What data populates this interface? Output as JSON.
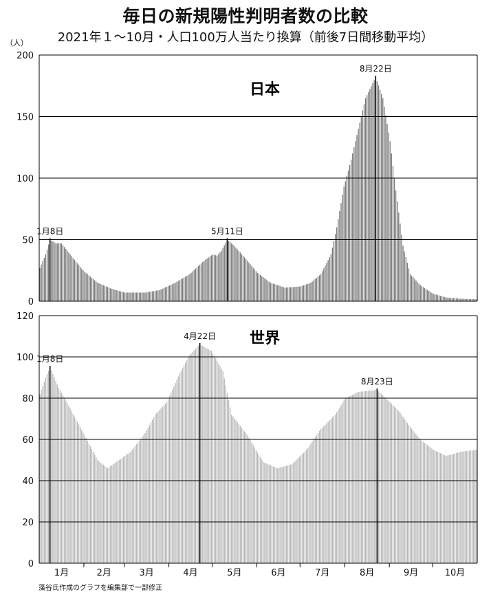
{
  "title": "毎日の新規陽性判明者数の比較",
  "subtitle": "2021年１〜10月・人口100万人当たり換算（前後7日間移動平均）",
  "credit": "藻谷氏作成のグラフを編集部で一部修正",
  "unit_label": "（人）",
  "colors": {
    "japan_bars": "#7a7a7a",
    "world_bars": "#b8b8b8",
    "grid": "#000000"
  },
  "chart_data": [
    {
      "type": "bar",
      "title": "日本",
      "xlabel": "",
      "ylabel": "（人）",
      "ylim": [
        0,
        200
      ],
      "yticks": [
        0,
        50,
        100,
        150,
        200
      ],
      "grid": true,
      "series": [
        {
          "keypoints": [
            [
              "01-01",
              27
            ],
            [
              "01-05",
              38
            ],
            [
              "01-08",
              50
            ],
            [
              "01-12",
              47
            ],
            [
              "01-16",
              47
            ],
            [
              "01-22",
              38
            ],
            [
              "01-31",
              25
            ],
            [
              "02-10",
              15
            ],
            [
              "02-20",
              10
            ],
            [
              "03-01",
              7
            ],
            [
              "03-15",
              7
            ],
            [
              "03-25",
              9
            ],
            [
              "04-05",
              15
            ],
            [
              "04-15",
              22
            ],
            [
              "04-25",
              33
            ],
            [
              "05-01",
              38
            ],
            [
              "05-04",
              37
            ],
            [
              "05-07",
              41
            ],
            [
              "05-11",
              50
            ],
            [
              "05-15",
              46
            ],
            [
              "05-22",
              37
            ],
            [
              "06-01",
              23
            ],
            [
              "06-10",
              15
            ],
            [
              "06-20",
              11
            ],
            [
              "07-01",
              12
            ],
            [
              "07-08",
              15
            ],
            [
              "07-15",
              22
            ],
            [
              "07-22",
              38
            ],
            [
              "07-26",
              60
            ],
            [
              "07-31",
              93
            ],
            [
              "08-05",
              115
            ],
            [
              "08-10",
              140
            ],
            [
              "08-15",
              165
            ],
            [
              "08-22",
              182
            ],
            [
              "08-27",
              165
            ],
            [
              "09-01",
              130
            ],
            [
              "09-05",
              90
            ],
            [
              "09-10",
              45
            ],
            [
              "09-15",
              22
            ],
            [
              "09-22",
              13
            ],
            [
              "10-01",
              6
            ],
            [
              "10-10",
              3
            ],
            [
              "10-20",
              2
            ],
            [
              "10-31",
              1.5
            ]
          ]
        }
      ],
      "annotations": [
        {
          "date": "01-08",
          "label": "1月8日",
          "value": 50
        },
        {
          "date": "05-11",
          "label": "5月11日",
          "value": 50
        },
        {
          "date": "08-22",
          "label": "8月22日",
          "value": 182
        }
      ]
    },
    {
      "type": "bar",
      "title": "世界",
      "xlabel": "",
      "ylabel": "",
      "ylim": [
        0,
        120
      ],
      "yticks": [
        0,
        20,
        40,
        60,
        80,
        100,
        120
      ],
      "grid": true,
      "categories": [
        "1月",
        "2月",
        "3月",
        "4月",
        "5月",
        "6月",
        "7月",
        "8月",
        "9月",
        "10月"
      ],
      "series": [
        {
          "keypoints": [
            [
              "01-01",
              82
            ],
            [
              "01-05",
              90
            ],
            [
              "01-08",
              95
            ],
            [
              "01-14",
              85
            ],
            [
              "01-22",
              75
            ],
            [
              "02-01",
              62
            ],
            [
              "02-10",
              50
            ],
            [
              "02-17",
              46
            ],
            [
              "02-21",
              48
            ],
            [
              "02-25",
              50
            ],
            [
              "03-05",
              54
            ],
            [
              "03-15",
              63
            ],
            [
              "03-22",
              72
            ],
            [
              "03-30",
              78
            ],
            [
              "04-08",
              92
            ],
            [
              "04-15",
              101
            ],
            [
              "04-22",
              106
            ],
            [
              "04-30",
              103
            ],
            [
              "05-08",
              93
            ],
            [
              "05-14",
              72
            ],
            [
              "05-25",
              62
            ],
            [
              "06-05",
              49
            ],
            [
              "06-15",
              46
            ],
            [
              "06-25",
              48
            ],
            [
              "07-05",
              55
            ],
            [
              "07-15",
              65
            ],
            [
              "07-25",
              72
            ],
            [
              "08-01",
              80
            ],
            [
              "08-10",
              83
            ],
            [
              "08-23",
              84
            ],
            [
              "09-01",
              78
            ],
            [
              "09-08",
              73
            ],
            [
              "09-15",
              66
            ],
            [
              "09-22",
              60
            ],
            [
              "10-01",
              55
            ],
            [
              "10-10",
              52
            ],
            [
              "10-20",
              54
            ],
            [
              "10-31",
              55
            ]
          ]
        }
      ],
      "annotations": [
        {
          "date": "01-08",
          "label": "1月8日",
          "value": 95
        },
        {
          "date": "04-22",
          "label": "4月22日",
          "value": 106
        },
        {
          "date": "08-23",
          "label": "8月23日",
          "value": 84
        }
      ]
    }
  ]
}
